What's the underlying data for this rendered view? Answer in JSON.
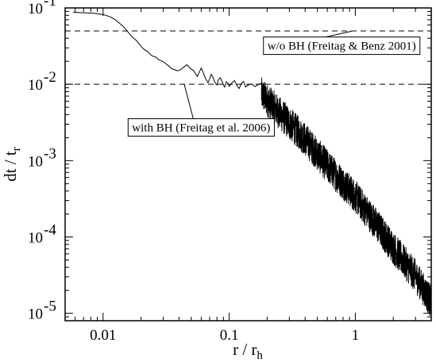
{
  "chart_data": {
    "type": "line",
    "title": "",
    "xlabel": "r / r",
    "xlabel_sub": "h",
    "ylabel": "dt / t",
    "ylabel_sub": "r",
    "xscale": "log",
    "yscale": "log",
    "xlim": [
      0.005,
      4.0
    ],
    "ylim": [
      8e-06,
      0.1
    ],
    "grid": false,
    "x_ticks": [
      {
        "value": 0.01,
        "label": "0.01"
      },
      {
        "value": 0.1,
        "label": "0.1"
      },
      {
        "value": 1,
        "label": "1"
      }
    ],
    "y_ticks": [
      {
        "value": 0.1,
        "base": "10",
        "exp": "-1"
      },
      {
        "value": 0.01,
        "base": "10",
        "exp": "-2"
      },
      {
        "value": 0.001,
        "base": "10",
        "exp": "-3"
      },
      {
        "value": 0.0001,
        "base": "10",
        "exp": "-4"
      },
      {
        "value": 1e-05,
        "base": "10",
        "exp": "-5"
      }
    ],
    "reference_lines": [
      {
        "y": 0.05,
        "style": "dashed",
        "label": "w/o BH (Freitag & Benz 2001)",
        "label_x": 0.78,
        "label_y": 0.032,
        "pointer_x": 0.95,
        "pointer_y": 0.05
      },
      {
        "y": 0.01,
        "style": "dashed",
        "label": "with BH (Freitag et al. 2006)",
        "label_x": 0.06,
        "label_y": 0.00272,
        "pointer_x": 0.044,
        "pointer_y": 0.01
      }
    ],
    "series": [
      {
        "style": "solid",
        "smooth_points": [
          [
            0.0058,
            0.088
          ],
          [
            0.0065,
            0.087
          ],
          [
            0.0075,
            0.086
          ],
          [
            0.0085,
            0.085
          ],
          [
            0.0095,
            0.083
          ],
          [
            0.0105,
            0.08
          ],
          [
            0.0115,
            0.076
          ],
          [
            0.0125,
            0.07
          ],
          [
            0.0135,
            0.063
          ],
          [
            0.0145,
            0.057
          ],
          [
            0.0155,
            0.05
          ],
          [
            0.0165,
            0.044
          ],
          [
            0.0175,
            0.04
          ],
          [
            0.0185,
            0.037
          ],
          [
            0.0195,
            0.033
          ],
          [
            0.0205,
            0.03
          ],
          [
            0.0215,
            0.028
          ],
          [
            0.0225,
            0.027
          ],
          [
            0.0235,
            0.025
          ],
          [
            0.0245,
            0.0235
          ],
          [
            0.0255,
            0.023
          ],
          [
            0.0265,
            0.0225
          ],
          [
            0.0275,
            0.021
          ],
          [
            0.0285,
            0.0205
          ],
          [
            0.0295,
            0.02
          ],
          [
            0.031,
            0.019
          ],
          [
            0.033,
            0.0175
          ],
          [
            0.035,
            0.016
          ],
          [
            0.037,
            0.0155
          ],
          [
            0.039,
            0.015
          ],
          [
            0.041,
            0.0155
          ],
          [
            0.043,
            0.0165
          ],
          [
            0.045,
            0.0175
          ],
          [
            0.046,
            0.018
          ],
          [
            0.047,
            0.0176
          ],
          [
            0.048,
            0.0168
          ],
          [
            0.05,
            0.0158
          ],
          [
            0.052,
            0.0152
          ],
          [
            0.054,
            0.0138
          ],
          [
            0.056,
            0.0127
          ],
          [
            0.058,
            0.0145
          ],
          [
            0.06,
            0.0163
          ],
          [
            0.062,
            0.0145
          ],
          [
            0.064,
            0.0125
          ],
          [
            0.066,
            0.0114
          ],
          [
            0.068,
            0.0105
          ],
          [
            0.07,
            0.0118
          ],
          [
            0.072,
            0.0135
          ],
          [
            0.074,
            0.0126
          ],
          [
            0.076,
            0.0112
          ],
          [
            0.078,
            0.0102
          ],
          [
            0.08,
            0.0098
          ],
          [
            0.082,
            0.0115
          ],
          [
            0.085,
            0.0122
          ],
          [
            0.088,
            0.0108
          ],
          [
            0.09,
            0.0098
          ],
          [
            0.092,
            0.0092
          ],
          [
            0.095,
            0.0108
          ],
          [
            0.098,
            0.0102
          ],
          [
            0.1,
            0.0094
          ],
          [
            0.105,
            0.0104
          ],
          [
            0.11,
            0.0112
          ],
          [
            0.115,
            0.0097
          ],
          [
            0.12,
            0.0088
          ],
          [
            0.125,
            0.0103
          ],
          [
            0.13,
            0.0109
          ],
          [
            0.135,
            0.0092
          ],
          [
            0.14,
            0.0097
          ],
          [
            0.15,
            0.0101
          ],
          [
            0.16,
            0.0093
          ],
          [
            0.17,
            0.0099
          ],
          [
            0.18,
            0.0103
          ]
        ],
        "noisy_trend": [
          [
            0.18,
            0.0075
          ],
          [
            0.25,
            0.0042
          ],
          [
            0.4,
            0.0019
          ],
          [
            0.6,
            0.00085
          ],
          [
            1.0,
            0.00034
          ],
          [
            1.5,
            0.00014
          ],
          [
            2.0,
            7.2e-05
          ],
          [
            3.0,
            3.1e-05
          ],
          [
            4.0,
            1.4e-05
          ]
        ],
        "noise_amplitude_decades": 0.22
      }
    ]
  }
}
